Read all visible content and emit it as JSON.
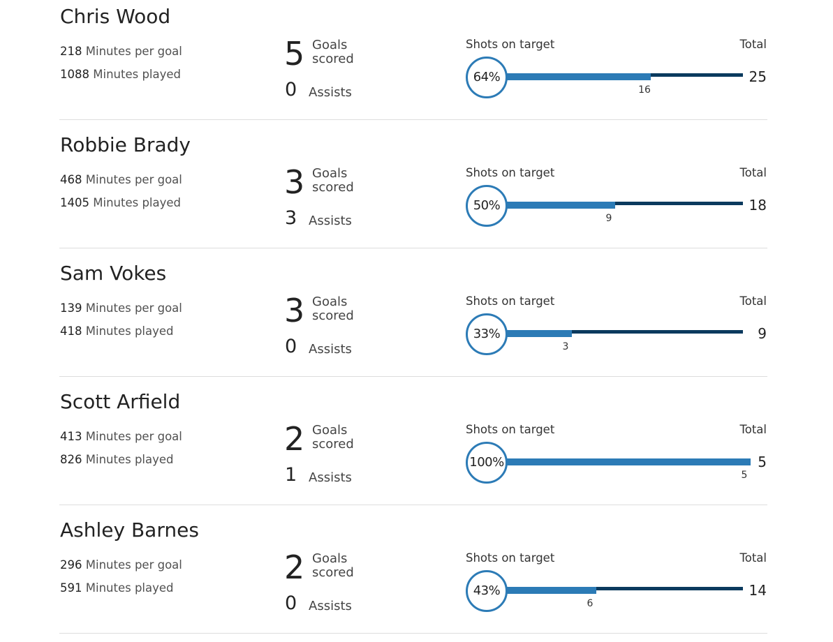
{
  "labels": {
    "minutes_per_goal": "Minutes per goal",
    "minutes_played": "Minutes played",
    "goals_scored_line1": "Goals",
    "goals_scored_line2": "scored",
    "assists": "Assists",
    "shots_on_target": "Shots on target",
    "total": "Total"
  },
  "colors": {
    "on_target_bar": "#2c7bb6",
    "total_bar": "#0b3a5e",
    "divider": "#dddddd"
  },
  "players": [
    {
      "name": "Chris Wood",
      "minutes_per_goal": "218",
      "minutes_played": "1088",
      "goals": "5",
      "assists": "0",
      "shots_on_target_pct": "64%",
      "shots_on_target": "16",
      "total_shots": "25"
    },
    {
      "name": "Robbie Brady",
      "minutes_per_goal": "468",
      "minutes_played": "1405",
      "goals": "3",
      "assists": "3",
      "shots_on_target_pct": "50%",
      "shots_on_target": "9",
      "total_shots": "18"
    },
    {
      "name": "Sam Vokes",
      "minutes_per_goal": "139",
      "minutes_played": "418",
      "goals": "3",
      "assists": "0",
      "shots_on_target_pct": "33%",
      "shots_on_target": "3",
      "total_shots": "9"
    },
    {
      "name": "Scott Arfield",
      "minutes_per_goal": "413",
      "minutes_played": "826",
      "goals": "2",
      "assists": "1",
      "shots_on_target_pct": "100%",
      "shots_on_target": "5",
      "total_shots": "5"
    },
    {
      "name": "Ashley Barnes",
      "minutes_per_goal": "296",
      "minutes_played": "591",
      "goals": "2",
      "assists": "0",
      "shots_on_target_pct": "43%",
      "shots_on_target": "6",
      "total_shots": "14"
    }
  ]
}
